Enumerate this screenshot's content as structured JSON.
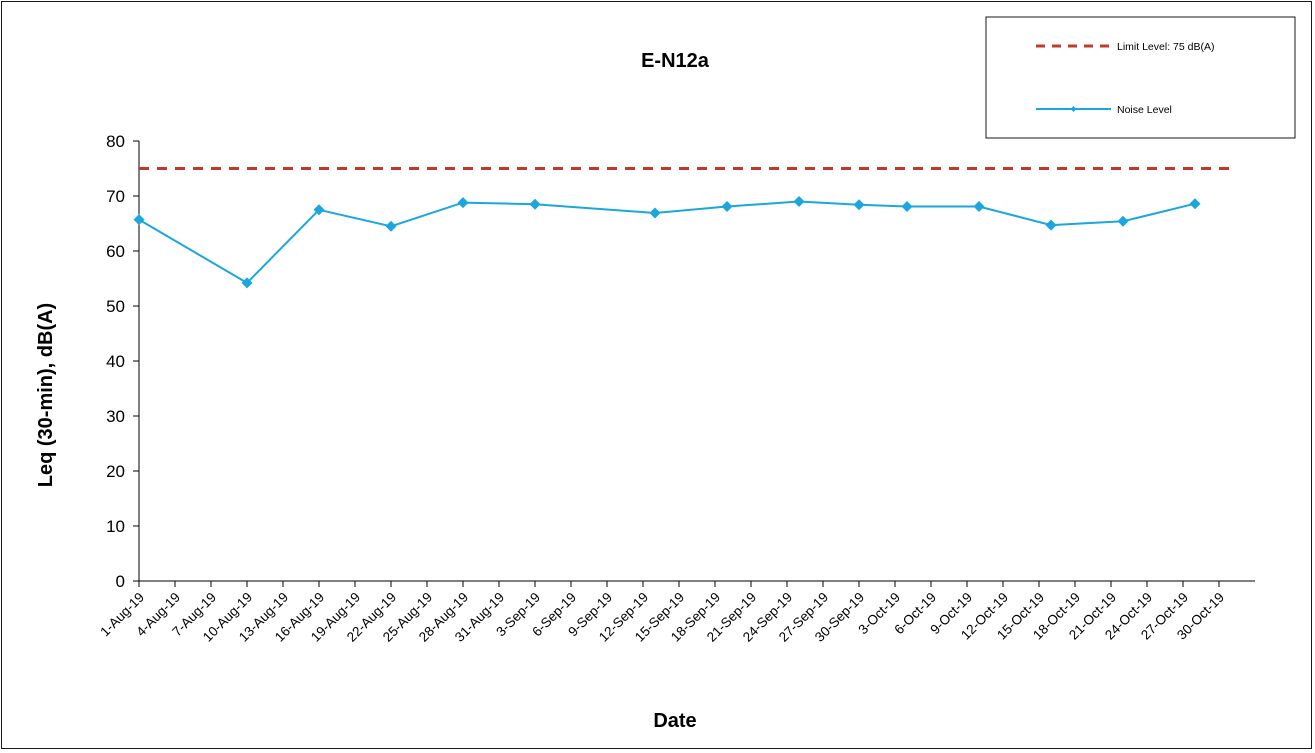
{
  "chart_data": {
    "type": "line",
    "title": "E-N12a",
    "xlabel": "Date",
    "ylabel": "Leq (30-min), dB(A)",
    "ylim": [
      0,
      80
    ],
    "y_ticks": [
      0,
      10,
      20,
      30,
      40,
      50,
      60,
      70,
      80
    ],
    "x_range": [
      "2019-08-01",
      "2019-11-02"
    ],
    "x_ticks": [
      "1-Aug-19",
      "4-Aug-19",
      "7-Aug-19",
      "10-Aug-19",
      "13-Aug-19",
      "16-Aug-19",
      "19-Aug-19",
      "22-Aug-19",
      "25-Aug-19",
      "28-Aug-19",
      "31-Aug-19",
      "3-Sep-19",
      "6-Sep-19",
      "9-Sep-19",
      "12-Sep-19",
      "15-Sep-19",
      "18-Sep-19",
      "21-Sep-19",
      "24-Sep-19",
      "27-Sep-19",
      "30-Sep-19",
      "3-Oct-19",
      "6-Oct-19",
      "9-Oct-19",
      "12-Oct-19",
      "15-Oct-19",
      "18-Oct-19",
      "21-Oct-19",
      "24-Oct-19",
      "27-Oct-19",
      "30-Oct-19"
    ],
    "grid": false,
    "legend_position": "top-right",
    "series": [
      {
        "name": "Limit Level: 75 dB(A)",
        "color": "#c0392b",
        "style": "dashed",
        "marker": "none",
        "x": [
          "2019-08-01",
          "2019-10-31"
        ],
        "y": [
          75,
          75
        ]
      },
      {
        "name": "Noise Level",
        "color": "#1aa6de",
        "style": "solid",
        "marker": "diamond",
        "x": [
          "2019-08-01",
          "2019-08-10",
          "2019-08-16",
          "2019-08-22",
          "2019-08-28",
          "2019-09-03",
          "2019-09-13",
          "2019-09-19",
          "2019-09-25",
          "2019-09-30",
          "2019-10-04",
          "2019-10-10",
          "2019-10-16",
          "2019-10-22",
          "2019-10-28"
        ],
        "y": [
          65.7,
          54.2,
          67.5,
          64.5,
          68.8,
          68.5,
          66.9,
          68.1,
          69.0,
          68.4,
          68.1,
          68.1,
          64.7,
          65.4,
          68.6
        ]
      }
    ]
  }
}
